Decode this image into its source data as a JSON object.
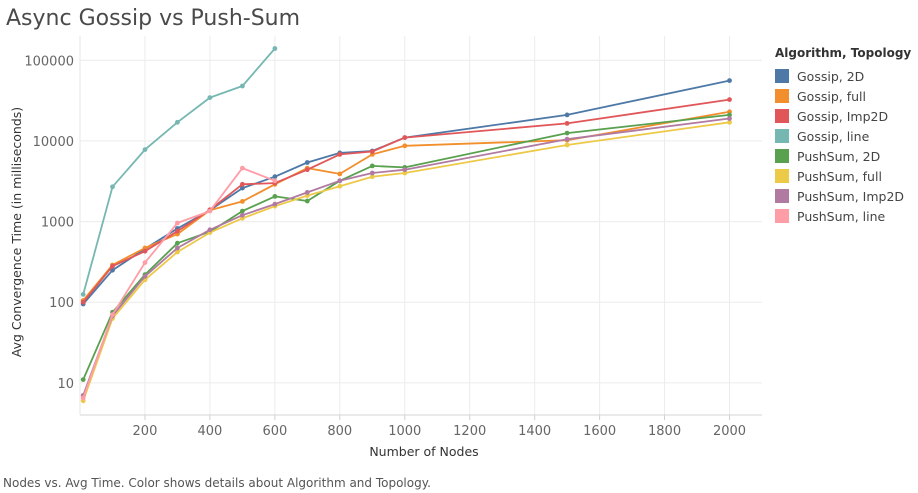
{
  "page": {
    "title": "Async Gossip vs Push-Sum",
    "caption": "Nodes vs. Avg Time.  Color shows details about Algorithm and Topology."
  },
  "legend": {
    "title": "Algorithm, Topology",
    "items": [
      {
        "label": "Gossip, 2D",
        "color": "#4e79a7"
      },
      {
        "label": "Gossip, full",
        "color": "#f28e2b"
      },
      {
        "label": "Gossip, Imp2D",
        "color": "#e15759"
      },
      {
        "label": "Gossip, line",
        "color": "#76b7b2"
      },
      {
        "label": "PushSum, 2D",
        "color": "#59a14f"
      },
      {
        "label": "PushSum, full",
        "color": "#edc948"
      },
      {
        "label": "PushSum, Imp2D",
        "color": "#b07aa1"
      },
      {
        "label": "PushSum, line",
        "color": "#ff9da7"
      }
    ]
  },
  "chart_data": {
    "type": "line",
    "title": "Async Gossip vs Push-Sum",
    "xlabel": "Number of Nodes",
    "ylabel": "Avg Convergence Time (in milliseconds)",
    "yscale": "log",
    "xlim": [
      0,
      2100
    ],
    "ylim": [
      4,
      200000
    ],
    "x_ticks": [
      200,
      400,
      600,
      800,
      1000,
      1200,
      1400,
      1600,
      1800,
      2000
    ],
    "x_tick_labels": [
      "200",
      "400",
      "600",
      "800",
      "1000",
      "1200",
      "1400",
      "1600",
      "1800",
      "2000"
    ],
    "y_ticks": [
      10,
      100,
      1000,
      10000,
      100000
    ],
    "y_tick_labels": [
      "10",
      "100",
      "1000",
      "10000",
      "100000"
    ],
    "grid": true,
    "legend_position": "right",
    "series": [
      {
        "name": "Gossip, 2D",
        "color": "#4e79a7",
        "x": [
          10,
          100,
          200,
          300,
          400,
          500,
          600,
          700,
          800,
          900,
          1000,
          1500,
          2000
        ],
        "y": [
          95,
          250,
          460,
          820,
          1380,
          2600,
          3600,
          5400,
          7100,
          7500,
          11000,
          21000,
          56000
        ]
      },
      {
        "name": "Gossip, full",
        "color": "#f28e2b",
        "x": [
          10,
          100,
          200,
          300,
          400,
          500,
          600,
          700,
          800,
          900,
          1000,
          1500,
          2000
        ],
        "y": [
          105,
          290,
          470,
          700,
          1380,
          1780,
          2900,
          4600,
          3900,
          6800,
          8700,
          10200,
          23000
        ]
      },
      {
        "name": "Gossip, Imp2D",
        "color": "#e15759",
        "x": [
          10,
          100,
          200,
          300,
          400,
          500,
          600,
          700,
          800,
          900,
          1000,
          1500,
          2000
        ],
        "y": [
          100,
          280,
          430,
          760,
          1400,
          2900,
          3000,
          4400,
          6800,
          7400,
          11000,
          16500,
          32500
        ]
      },
      {
        "name": "Gossip, line",
        "color": "#76b7b2",
        "x": [
          10,
          100,
          200,
          300,
          400,
          500,
          600
        ],
        "y": [
          125,
          2700,
          7800,
          17000,
          34500,
          48000,
          140000
        ]
      },
      {
        "name": "PushSum, 2D",
        "color": "#59a14f",
        "x": [
          10,
          100,
          200,
          300,
          400,
          500,
          600,
          700,
          800,
          900,
          1000,
          1500,
          2000
        ],
        "y": [
          11,
          75,
          220,
          540,
          750,
          1350,
          2050,
          1800,
          3200,
          4900,
          4700,
          12500,
          21000
        ]
      },
      {
        "name": "PushSum, full",
        "color": "#edc948",
        "x": [
          10,
          100,
          200,
          300,
          400,
          500,
          600,
          700,
          800,
          900,
          1000,
          1500,
          2000
        ],
        "y": [
          6,
          63,
          190,
          420,
          730,
          1100,
          1550,
          2100,
          2750,
          3600,
          4000,
          8900,
          17000
        ]
      },
      {
        "name": "PushSum, Imp2D",
        "color": "#b07aa1",
        "x": [
          10,
          100,
          200,
          300,
          400,
          500,
          600,
          700,
          800,
          900,
          1000,
          1500,
          2000
        ],
        "y": [
          7,
          68,
          210,
          470,
          790,
          1200,
          1650,
          2300,
          3200,
          4000,
          4400,
          10500,
          19000
        ]
      },
      {
        "name": "PushSum, line",
        "color": "#ff9da7",
        "x": [
          10,
          100,
          200,
          300,
          400,
          500,
          600
        ],
        "y": [
          6.5,
          70,
          310,
          960,
          1350,
          4600,
          3200
        ]
      }
    ]
  }
}
